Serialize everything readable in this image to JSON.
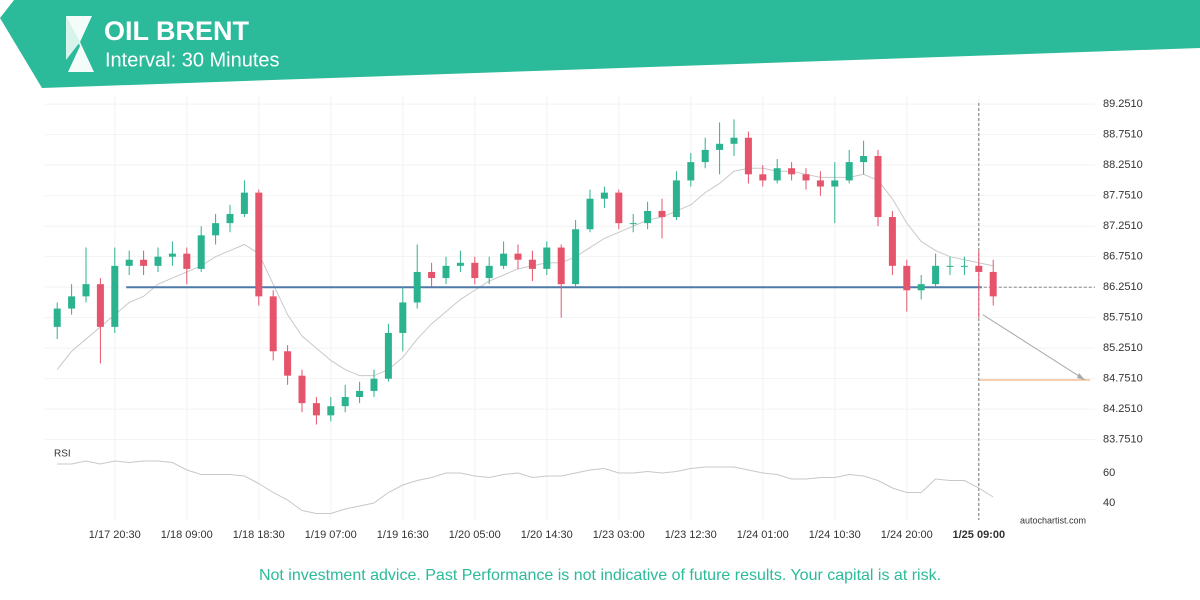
{
  "header": {
    "title": "OIL BRENT",
    "subtitle": "Interval: 30 Minutes"
  },
  "footer": {
    "disclaimer": "Not investment advice. Past Performance is not indicative of future results. Your capital is at risk.",
    "brand": "autochartist.com"
  },
  "chart_data": [
    {
      "type": "candlestick",
      "categories": [
        null,
        null,
        null,
        null,
        "1/17 20:30",
        null,
        null,
        null,
        null,
        "1/18 09:00",
        null,
        null,
        null,
        null,
        "1/18 18:30",
        null,
        null,
        null,
        null,
        "1/19 07:00",
        null,
        null,
        null,
        null,
        "1/19 16:30",
        null,
        null,
        null,
        null,
        "1/20 05:00",
        null,
        null,
        null,
        null,
        "1/20 14:30",
        null,
        null,
        null,
        null,
        "1/23 03:00",
        null,
        null,
        null,
        null,
        "1/23 12:30",
        null,
        null,
        null,
        null,
        "1/24 01:00",
        null,
        null,
        null,
        null,
        "1/24 10:30",
        null,
        null,
        null,
        null,
        "1/24 20:00",
        null,
        null,
        null,
        null,
        "1/25 09:00",
        null
      ],
      "open": [
        85.6,
        85.9,
        86.1,
        86.3,
        85.6,
        86.6,
        86.7,
        86.6,
        86.75,
        86.8,
        86.55,
        87.1,
        87.3,
        87.45,
        87.8,
        86.1,
        85.2,
        84.8,
        84.35,
        84.15,
        84.3,
        84.45,
        84.55,
        84.75,
        85.5,
        86.0,
        86.5,
        86.4,
        86.6,
        86.65,
        86.4,
        86.6,
        86.8,
        86.7,
        86.55,
        86.9,
        86.3,
        87.2,
        87.7,
        87.8,
        87.3,
        87.3,
        87.5,
        87.4,
        88.0,
        88.3,
        88.5,
        88.6,
        88.7,
        88.1,
        88.0,
        88.2,
        88.1,
        88.0,
        87.9,
        88.0,
        88.3,
        88.4,
        87.4,
        86.6,
        86.2,
        86.3,
        86.6,
        86.6,
        86.6,
        86.5
      ],
      "high": [
        86.0,
        86.3,
        86.9,
        86.4,
        86.9,
        86.85,
        86.85,
        86.9,
        87.0,
        86.9,
        87.25,
        87.45,
        87.6,
        88.0,
        87.85,
        86.2,
        85.3,
        84.9,
        84.45,
        84.45,
        84.65,
        84.7,
        84.9,
        85.65,
        86.25,
        86.95,
        86.65,
        86.75,
        86.85,
        86.75,
        86.75,
        87.0,
        86.95,
        86.85,
        87.0,
        86.95,
        87.35,
        87.85,
        87.9,
        87.85,
        87.45,
        87.65,
        87.7,
        88.15,
        88.45,
        88.7,
        88.95,
        89.0,
        88.8,
        88.25,
        88.35,
        88.3,
        88.2,
        88.15,
        88.3,
        88.5,
        88.65,
        88.5,
        87.5,
        86.7,
        86.45,
        86.8,
        86.75,
        86.75,
        86.85,
        86.7
      ],
      "low": [
        85.4,
        85.8,
        86.0,
        85.0,
        85.5,
        86.45,
        86.45,
        86.5,
        86.6,
        86.3,
        86.5,
        86.95,
        87.15,
        87.4,
        85.95,
        85.05,
        84.65,
        84.2,
        84.0,
        84.05,
        84.2,
        84.35,
        84.45,
        84.7,
        85.2,
        85.9,
        86.25,
        86.3,
        86.5,
        86.3,
        86.3,
        86.55,
        86.55,
        86.35,
        86.45,
        85.75,
        86.25,
        87.15,
        87.55,
        87.2,
        87.15,
        87.2,
        87.05,
        87.35,
        87.9,
        88.2,
        88.1,
        88.4,
        87.95,
        87.9,
        87.95,
        88.0,
        87.85,
        87.75,
        87.3,
        87.95,
        88.1,
        87.25,
        86.45,
        85.85,
        86.05,
        86.25,
        86.45,
        86.45,
        85.75,
        85.95
      ],
      "close": [
        85.9,
        86.1,
        86.3,
        85.6,
        86.6,
        86.7,
        86.6,
        86.75,
        86.8,
        86.55,
        87.1,
        87.3,
        87.45,
        87.8,
        86.1,
        85.2,
        84.8,
        84.35,
        84.15,
        84.3,
        84.45,
        84.55,
        84.75,
        85.5,
        86.0,
        86.5,
        86.4,
        86.6,
        86.65,
        86.4,
        86.6,
        86.8,
        86.7,
        86.55,
        86.9,
        86.3,
        87.2,
        87.7,
        87.8,
        87.3,
        87.3,
        87.5,
        87.4,
        88.0,
        88.3,
        88.5,
        88.6,
        88.7,
        88.1,
        88.0,
        88.2,
        88.1,
        88.0,
        87.9,
        88.0,
        88.3,
        88.4,
        87.4,
        86.6,
        86.2,
        86.3,
        86.6,
        86.6,
        86.6,
        86.5,
        86.1
      ],
      "up_color": "#2bb38f",
      "down_color": "#e6546c",
      "series": [
        {
          "color": "#c8c8c8",
          "values": [
            84.9,
            85.2,
            85.4,
            85.6,
            85.8,
            86.0,
            86.1,
            86.3,
            86.4,
            86.5,
            86.6,
            86.75,
            86.85,
            86.95,
            86.8,
            86.3,
            85.8,
            85.45,
            85.25,
            85.05,
            84.9,
            84.8,
            84.8,
            84.9,
            85.1,
            85.4,
            85.65,
            85.85,
            86.05,
            86.2,
            86.35,
            86.45,
            86.55,
            86.6,
            86.65,
            86.65,
            86.75,
            86.9,
            87.05,
            87.15,
            87.25,
            87.35,
            87.4,
            87.5,
            87.6,
            87.8,
            87.95,
            88.15,
            88.2,
            88.2,
            88.15,
            88.15,
            88.1,
            88.05,
            88.05,
            88.05,
            88.1,
            88.0,
            87.7,
            87.3,
            87.0,
            86.85,
            86.75,
            86.7,
            86.65,
            86.6
          ]
        }
      ],
      "support": {
        "value": 86.25,
        "color": "#4f79a8"
      },
      "current_price": 86.25,
      "forecast": {
        "from": 85.8,
        "to": 84.73,
        "color": "#f0a060"
      },
      "ylim": [
        83.5,
        89.4
      ],
      "yticks": [
        {
          "value": 89.251,
          "label": "89.2510"
        },
        {
          "value": 88.751,
          "label": "88.7510"
        },
        {
          "value": 88.251,
          "label": "88.2510"
        },
        {
          "value": 87.751,
          "label": "87.7510"
        },
        {
          "value": 87.251,
          "label": "87.2510"
        },
        {
          "value": 86.751,
          "label": "86.7510"
        },
        {
          "value": 86.251,
          "label": "86.2510"
        },
        {
          "value": 85.751,
          "label": "85.7510"
        },
        {
          "value": 85.251,
          "label": "85.2510"
        },
        {
          "value": 84.751,
          "label": "84.7510"
        },
        {
          "value": 84.251,
          "label": "84.2510"
        },
        {
          "value": 83.751,
          "label": "83.7510"
        }
      ],
      "grid": true
    },
    {
      "type": "line",
      "label": "RSI",
      "color": "#c8c8c8",
      "values": [
        66,
        66,
        68,
        66,
        68,
        67,
        68,
        68,
        67,
        62,
        59,
        59,
        59,
        58,
        53,
        47,
        42,
        35,
        33,
        33,
        36,
        38,
        40,
        47,
        52,
        55,
        57,
        60,
        60,
        58,
        57,
        59,
        60,
        57,
        58,
        58,
        60,
        62,
        63,
        60,
        60,
        61,
        60,
        61,
        63,
        64,
        64,
        64,
        62,
        60,
        59,
        56,
        56,
        57,
        57,
        59,
        58,
        55,
        50,
        47,
        47,
        56,
        55,
        55,
        50,
        44
      ],
      "ylim": [
        30,
        70
      ],
      "yticks": [
        40,
        60
      ]
    }
  ]
}
